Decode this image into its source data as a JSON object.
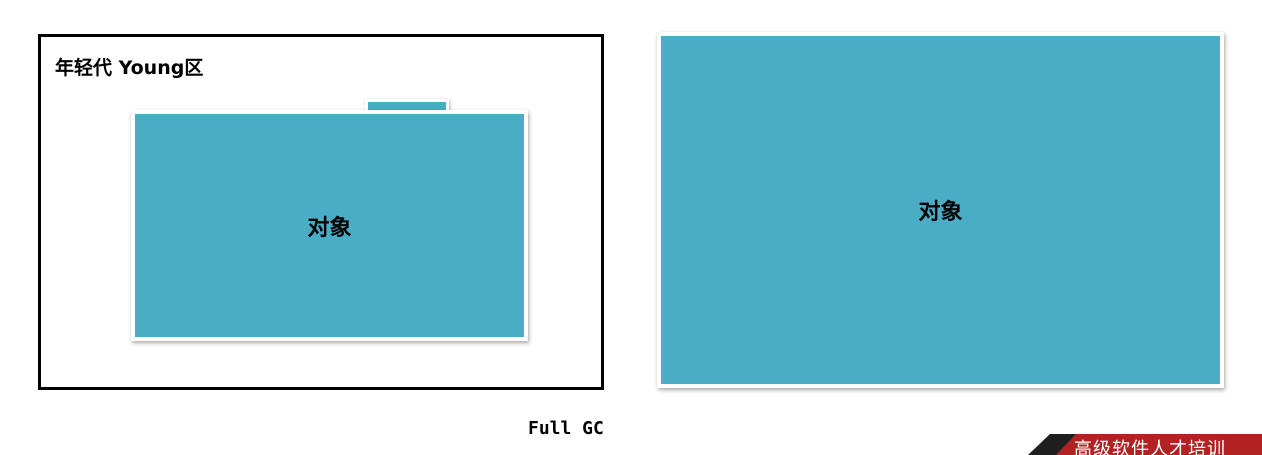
{
  "young_region": {
    "title": "年轻代  Young区"
  },
  "objects": {
    "young_object_label": "对象",
    "target_object_label": "对象"
  },
  "gc": {
    "label": "Full GC"
  },
  "banner": {
    "text": "高级软件人才培训",
    "color": "#b22222"
  },
  "colors": {
    "object_fill": "#4bacc6",
    "region_border": "#000000"
  }
}
